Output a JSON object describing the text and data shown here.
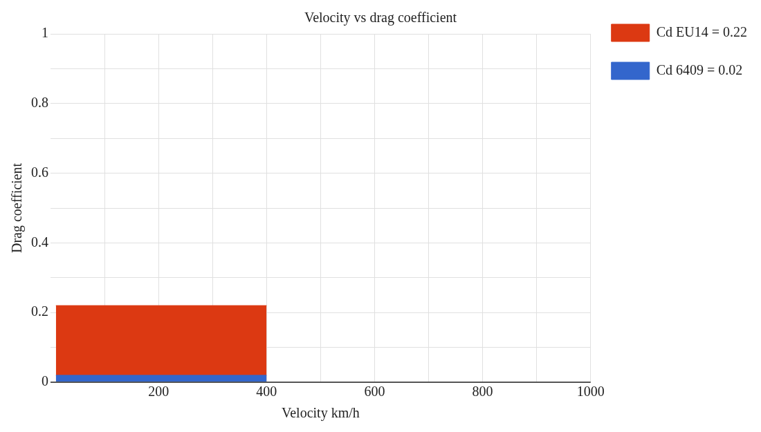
{
  "chart_data": {
    "type": "area",
    "title": "Velocity vs drag coefficient",
    "xlabel": "Velocity km/h",
    "ylabel": "Drag coefficient",
    "x": [
      10,
      400
    ],
    "series": [
      {
        "name": "Cd EU14 = 0.22",
        "color": "#dc3912",
        "values": [
          0.22,
          0.22
        ]
      },
      {
        "name": "Cd 6409 = 0.02",
        "color": "#3366cc",
        "values": [
          0.02,
          0.02
        ]
      }
    ],
    "xlim": [
      0,
      1000
    ],
    "xticks": [
      {
        "value": 100,
        "label": null
      },
      200,
      {
        "value": 300,
        "label": null
      },
      400,
      {
        "value": 500,
        "label": null
      },
      600,
      {
        "value": 700,
        "label": null
      },
      800,
      {
        "value": 900,
        "label": null
      },
      1000
    ],
    "ylim": [
      0,
      1
    ],
    "yticks": [
      0,
      {
        "value": 0.1,
        "label": null
      },
      0.2,
      {
        "value": 0.3,
        "label": null
      },
      0.4,
      {
        "value": 0.5,
        "label": null
      },
      0.6,
      {
        "value": 0.7,
        "label": null
      },
      0.8,
      {
        "value": 0.9,
        "label": null
      },
      1
    ],
    "grid": true,
    "legend": "top right",
    "marker": "none"
  }
}
